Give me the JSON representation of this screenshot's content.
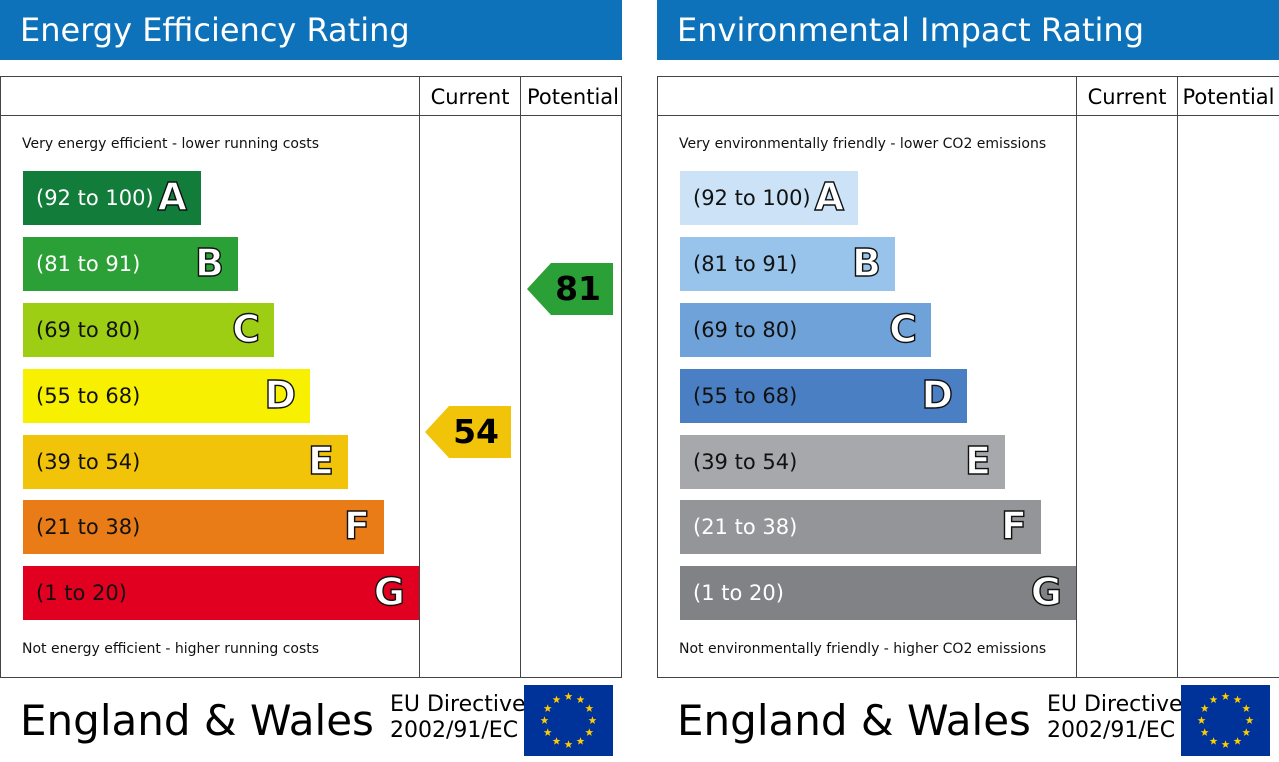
{
  "energy": {
    "title": "Energy Efficiency Rating",
    "header_current": "Current",
    "header_potential": "Potential",
    "top_note": "Very energy efficient - lower running costs",
    "bottom_note": "Not energy efficient - higher running costs",
    "bands": [
      {
        "range": "(92 to 100)",
        "letter": "A",
        "color": "#127d3a",
        "text_color": "#ffffff",
        "letter_color": "#ffffff"
      },
      {
        "range": "(81 to 91)",
        "letter": "B",
        "color": "#2ba037",
        "text_color": "#ffffff",
        "letter_color": "#ffffff"
      },
      {
        "range": "(69 to 80)",
        "letter": "C",
        "color": "#9ece13",
        "text_color": "#111111",
        "letter_color": "#ffffff"
      },
      {
        "range": "(55 to 68)",
        "letter": "D",
        "color": "#f7f000",
        "text_color": "#111111",
        "letter_color": "#ffffff"
      },
      {
        "range": "(39 to 54)",
        "letter": "E",
        "color": "#f1c40a",
        "text_color": "#111111",
        "letter_color": "#ffffff"
      },
      {
        "range": "(21 to 38)",
        "letter": "F",
        "color": "#e97c17",
        "text_color": "#111111",
        "letter_color": "#ffffff"
      },
      {
        "range": "(1 to 20)",
        "letter": "G",
        "color": "#e1001f",
        "text_color": "#111111",
        "letter_color": "#ffffff"
      }
    ],
    "current": {
      "value": "54",
      "color": "#f1c40a"
    },
    "potential": {
      "value": "81",
      "color": "#2ba037"
    },
    "footer_country": "England & Wales",
    "footer_directive_line1": "EU Directive",
    "footer_directive_line2": "2002/91/EC"
  },
  "environment": {
    "title": "Environmental Impact Rating",
    "header_current": "Current",
    "header_potential": "Potential",
    "top_note": "Very environmentally friendly - lower CO2 emissions",
    "bottom_note": "Not environmentally friendly - higher CO2 emissions",
    "bands": [
      {
        "range": "(92 to 100)",
        "letter": "A",
        "color": "#cce3f7",
        "text_color": "#111111",
        "letter_color": "#ffffff"
      },
      {
        "range": "(81 to 91)",
        "letter": "B",
        "color": "#98c3ea",
        "text_color": "#111111",
        "letter_color": "#ffffff"
      },
      {
        "range": "(69 to 80)",
        "letter": "C",
        "color": "#6fa2d8",
        "text_color": "#111111",
        "letter_color": "#ffffff"
      },
      {
        "range": "(55 to 68)",
        "letter": "D",
        "color": "#4a7fc3",
        "text_color": "#111111",
        "letter_color": "#ffffff"
      },
      {
        "range": "(39 to 54)",
        "letter": "E",
        "color": "#a6a8ab",
        "text_color": "#111111",
        "letter_color": "#ffffff"
      },
      {
        "range": "(21 to 38)",
        "letter": "F",
        "color": "#939598",
        "text_color": "#ffffff",
        "letter_color": "#ffffff"
      },
      {
        "range": "(1 to 20)",
        "letter": "G",
        "color": "#808285",
        "text_color": "#ffffff",
        "letter_color": "#ffffff"
      }
    ],
    "footer_country": "England & Wales",
    "footer_directive_line1": "EU Directive",
    "footer_directive_line2": "2002/91/EC"
  },
  "eu_flag": {
    "icon": "eu-flag-icon",
    "background": "#003399",
    "star_color": "#ffcc00"
  }
}
